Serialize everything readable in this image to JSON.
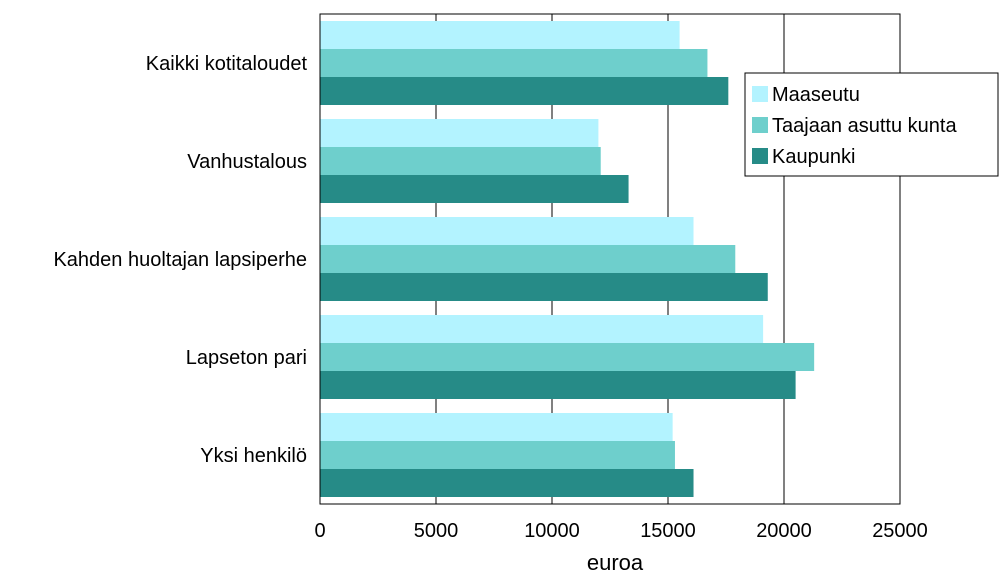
{
  "chart_data": {
    "type": "bar",
    "orientation": "horizontal",
    "categories": [
      "Kaikki kotitaloudet",
      "Vanhustalous",
      "Kahden huoltajan lapsiperhe",
      "Lapseton pari",
      "Yksi henkilö"
    ],
    "series": [
      {
        "name": "Maaseutu",
        "color": "#b3f3ff",
        "values": [
          15500,
          12000,
          16100,
          19100,
          15200
        ]
      },
      {
        "name": "Taajaan asuttu kunta",
        "color": "#6ecfcc",
        "values": [
          16700,
          12100,
          17900,
          21300,
          15300
        ]
      },
      {
        "name": "Kaupunki",
        "color": "#268b87",
        "values": [
          17600,
          13300,
          19300,
          20500,
          16100
        ]
      }
    ],
    "xlim": [
      0,
      25000
    ],
    "xticks": [
      "0",
      "5000",
      "10000",
      "15000",
      "20000",
      "25000"
    ],
    "xlabel": "euroa",
    "ylabel": "",
    "title": "",
    "grid": "vertical",
    "legend": "top-right"
  }
}
